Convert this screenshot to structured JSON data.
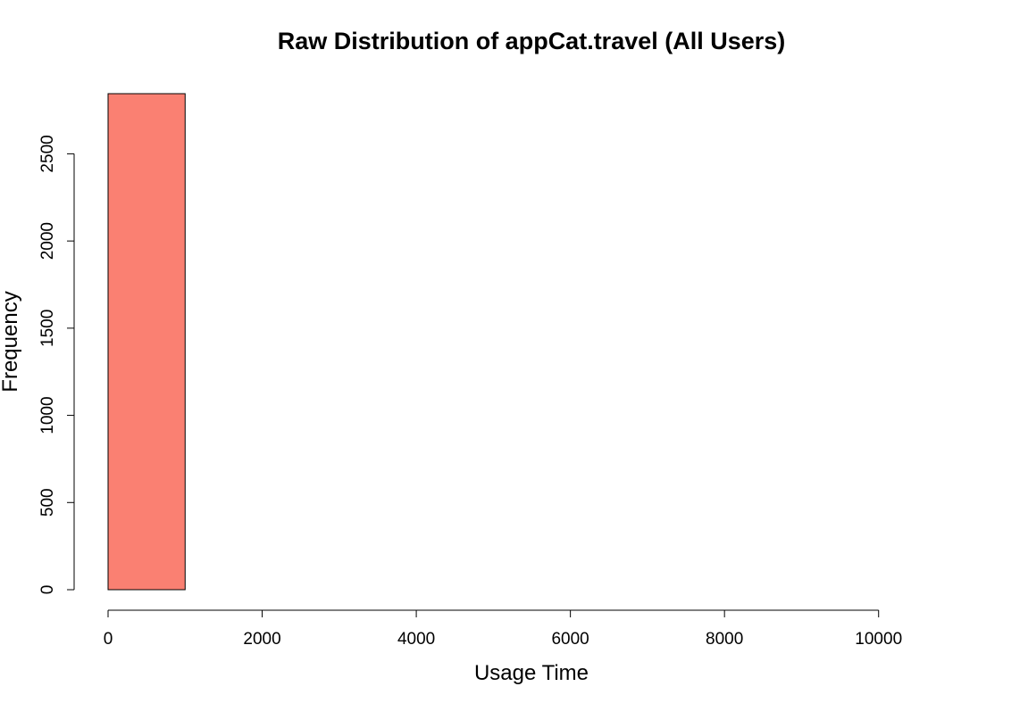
{
  "chart_data": {
    "type": "bar",
    "subtype": "histogram",
    "title": "Raw Distribution of appCat.travel (All Users)",
    "xlabel": "Usage Time",
    "ylabel": "Frequency",
    "bins": [
      {
        "x0": 0,
        "x1": 1000,
        "count": 2845
      },
      {
        "x0": 1000,
        "x1": 2000,
        "count": 0
      },
      {
        "x0": 2000,
        "x1": 3000,
        "count": 0
      },
      {
        "x0": 3000,
        "x1": 4000,
        "count": 0
      },
      {
        "x0": 4000,
        "x1": 5000,
        "count": 0
      },
      {
        "x0": 5000,
        "x1": 6000,
        "count": 0
      },
      {
        "x0": 6000,
        "x1": 7000,
        "count": 0
      },
      {
        "x0": 7000,
        "x1": 8000,
        "count": 0
      },
      {
        "x0": 8000,
        "x1": 9000,
        "count": 0
      },
      {
        "x0": 9000,
        "x1": 10000,
        "count": 0
      },
      {
        "x0": 10000,
        "x1": 11000,
        "count": 0
      }
    ],
    "xticks": [
      0,
      2000,
      4000,
      6000,
      8000,
      10000
    ],
    "yticks": [
      0,
      500,
      1000,
      1500,
      2000,
      2500
    ],
    "xlim": [
      0,
      11000
    ],
    "ylim": [
      0,
      2845
    ],
    "bar_color": "#FA8072",
    "grid": false,
    "legend": false
  }
}
